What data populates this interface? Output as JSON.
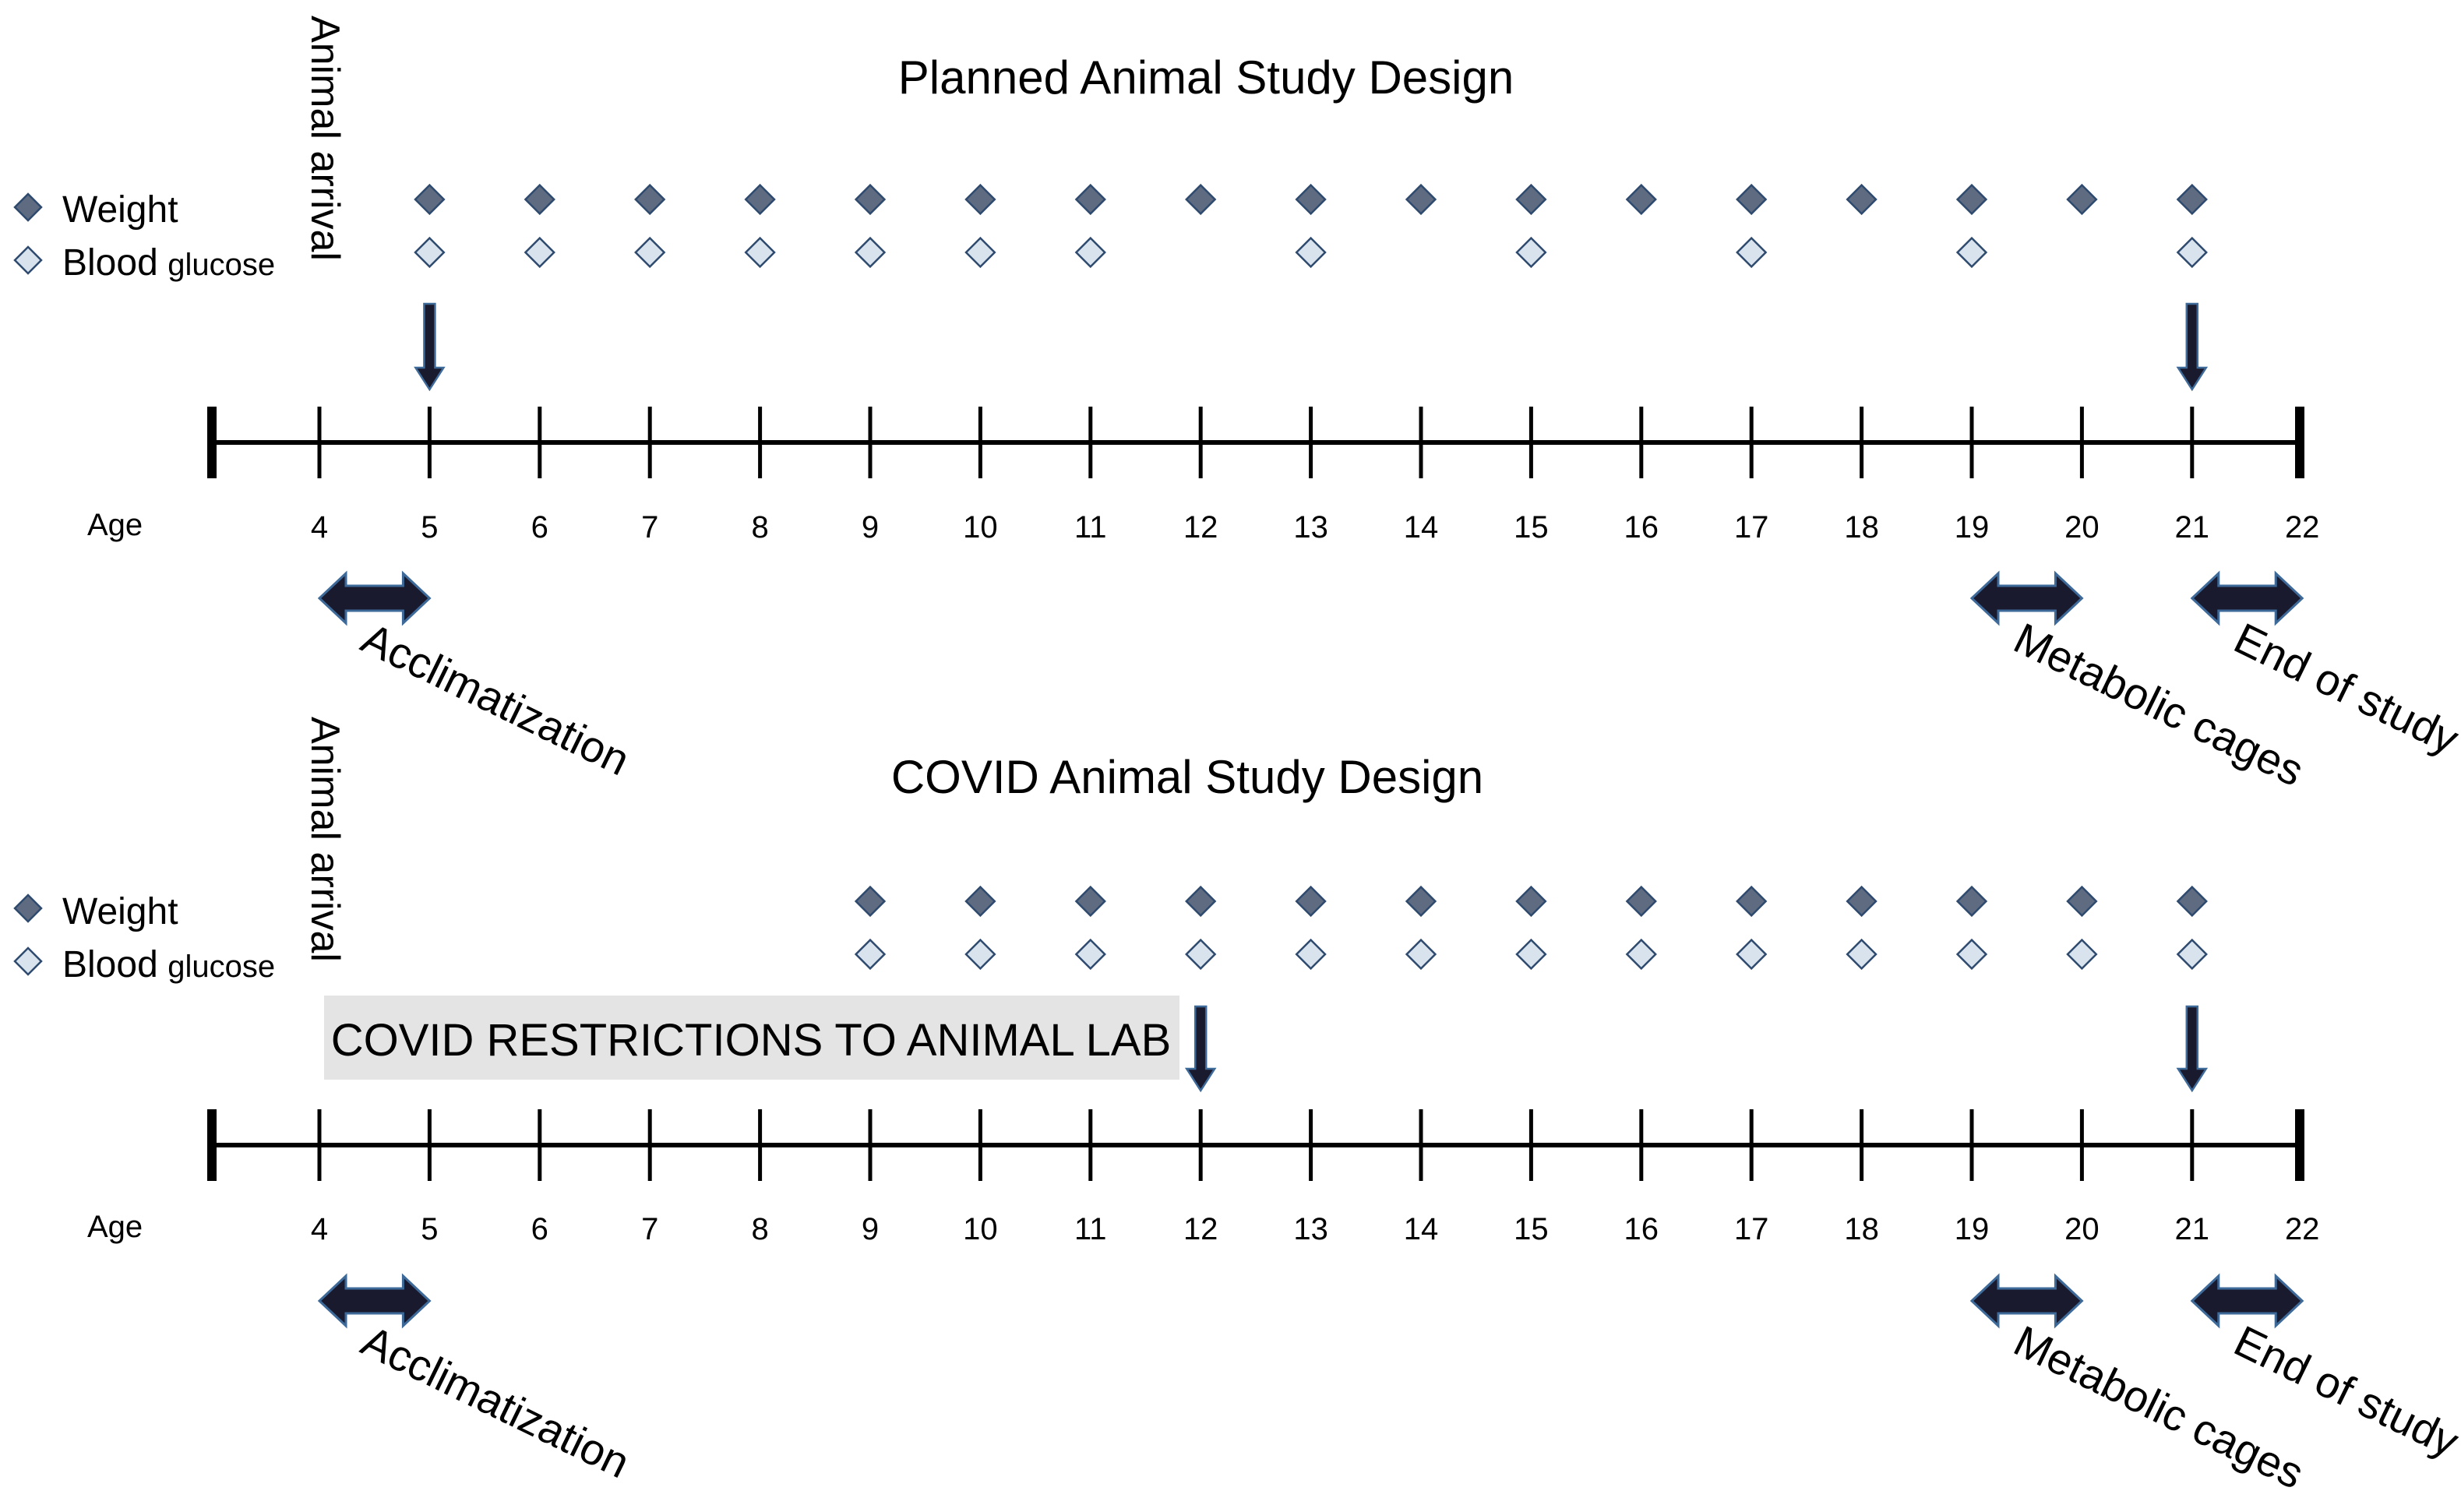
{
  "colors": {
    "weight_fill": "#5F6B80",
    "glucose_fill": "#D8E3EE",
    "marker_stroke": "#2E4A6E",
    "arrow_fill": "#1A1A2E",
    "arrow_stroke": "#3E6A9A",
    "axis": "#000000",
    "covid_box": "#E4E4E4"
  },
  "panels": [
    {
      "id": "planned",
      "title": "Planned Animal Study Design",
      "arrival_label": "Animal arrival",
      "legend": {
        "weight": "Weight",
        "glucose_main": "Blood",
        "glucose_sub": "glucose"
      },
      "age_label": "Age",
      "ticks": [
        4,
        5,
        6,
        7,
        8,
        9,
        10,
        11,
        12,
        13,
        14,
        15,
        16,
        17,
        18,
        19,
        20,
        21,
        22
      ],
      "weight_weeks": [
        5,
        6,
        7,
        8,
        9,
        10,
        11,
        12,
        13,
        14,
        15,
        16,
        17,
        18,
        19,
        20,
        21
      ],
      "glucose_weeks": [
        5,
        6,
        7,
        8,
        9,
        10,
        11,
        13,
        15,
        17,
        19,
        21
      ],
      "down_arrows": [
        5,
        21
      ],
      "periods": [
        {
          "label": "Acclimatization",
          "from": 4,
          "to": 5
        },
        {
          "label": "Metabolic cages",
          "from": 19,
          "to": 20
        },
        {
          "label": "End of study",
          "from": 21,
          "to": 22
        }
      ],
      "restriction_label": null
    },
    {
      "id": "covid",
      "title": "COVID Animal Study Design",
      "arrival_label": "Animal arrival",
      "legend": {
        "weight": "Weight",
        "glucose_main": "Blood",
        "glucose_sub": "glucose"
      },
      "age_label": "Age",
      "ticks": [
        4,
        5,
        6,
        7,
        8,
        9,
        10,
        11,
        12,
        13,
        14,
        15,
        16,
        17,
        18,
        19,
        20,
        21,
        22
      ],
      "weight_weeks": [
        9,
        10,
        11,
        12,
        13,
        14,
        15,
        16,
        17,
        18,
        19,
        20,
        21
      ],
      "glucose_weeks": [
        9,
        10,
        11,
        12,
        13,
        14,
        15,
        16,
        17,
        18,
        19,
        20,
        21
      ],
      "down_arrows": [
        12,
        21
      ],
      "periods": [
        {
          "label": "Acclimatization",
          "from": 4,
          "to": 5
        },
        {
          "label": "Metabolic cages",
          "from": 19,
          "to": 20
        },
        {
          "label": "End of study",
          "from": 21,
          "to": 22
        }
      ],
      "restriction_label": "COVID RESTRICTIONS TO ANIMAL LAB"
    }
  ]
}
